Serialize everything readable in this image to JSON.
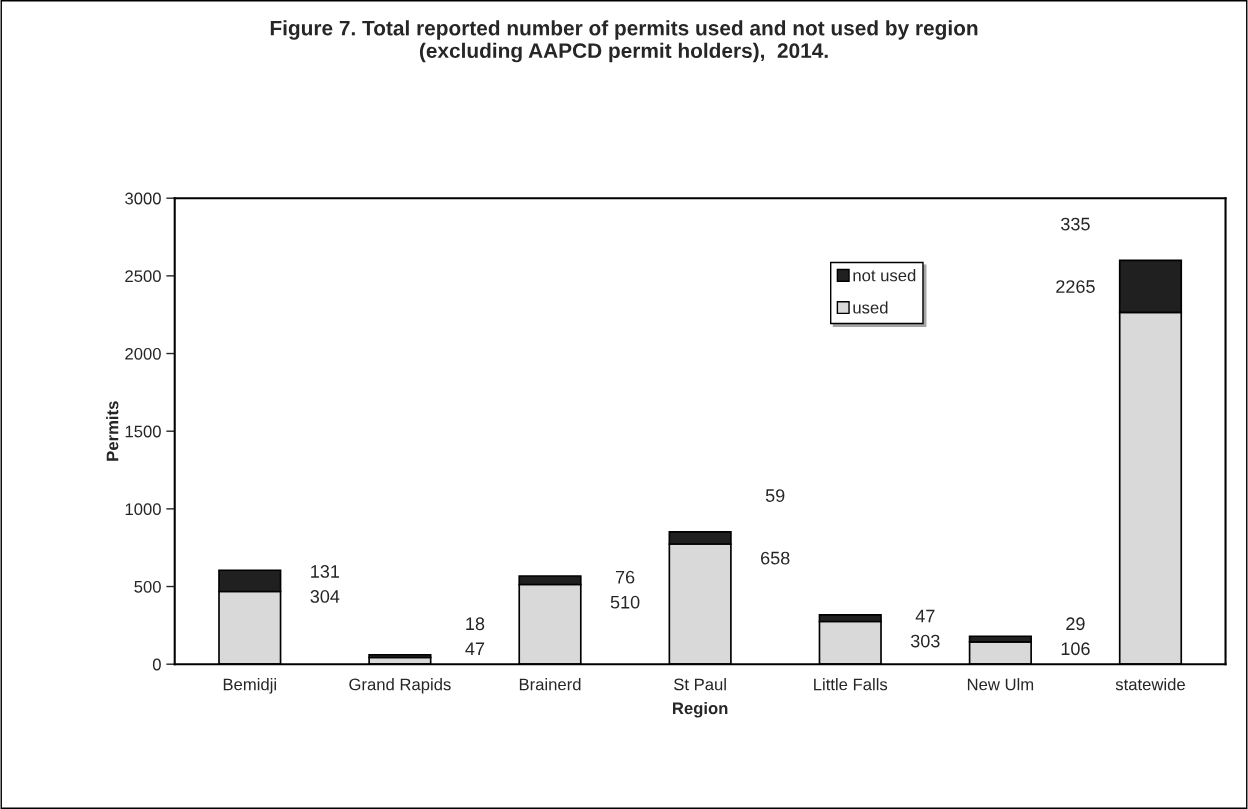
{
  "chart_data": {
    "type": "bar",
    "stacked": true,
    "title": "Figure 7. Total reported number of permits used and not used by region\n(excluding AAPCD permit holders),  2014.",
    "xlabel": "Region",
    "ylabel": "Permits",
    "categories": [
      "Bemidji",
      "Grand Rapids",
      "Brainerd",
      "St Paul",
      "Little Falls",
      "New Ulm",
      "statewide"
    ],
    "series": [
      {
        "name": "used",
        "color": "#d9d9d9",
        "values": [
          468,
          43,
          513,
          774,
          275,
          144,
          2265
        ]
      },
      {
        "name": "not used",
        "color": "#202020",
        "values": [
          137,
          18,
          55,
          78,
          43,
          36,
          335
        ]
      }
    ],
    "annotations": [
      "131",
      "304",
      "18",
      "47",
      "76",
      "510",
      "59",
      "658",
      "47",
      "303",
      "29",
      "106",
      "335",
      "2265"
    ],
    "ylim": [
      0,
      3000
    ],
    "yticks": [
      0,
      500,
      1000,
      1500,
      2000,
      2500,
      3000
    ],
    "grid": false,
    "legend": "top right"
  }
}
